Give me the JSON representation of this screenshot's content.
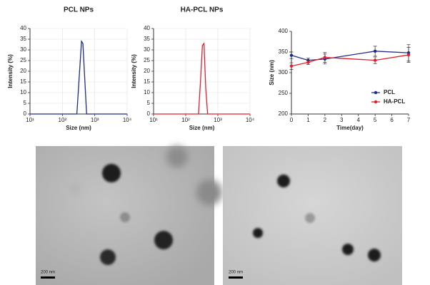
{
  "chart_data": [
    {
      "type": "line",
      "title": "PCL NPs",
      "x_label": "Size (nm)",
      "y_label": "Intensity (%)",
      "xscale": "log",
      "grid": true,
      "xlim": [
        10,
        10000
      ],
      "xticks": [
        {
          "value": 10,
          "label": "10¹"
        },
        {
          "value": 100,
          "label": "10²"
        },
        {
          "value": 1000,
          "label": "10³"
        },
        {
          "value": 10000,
          "label": "10⁴"
        }
      ],
      "ylim": [
        0,
        40
      ],
      "yticks": [
        0,
        5,
        10,
        15,
        20,
        25,
        30,
        35,
        40
      ],
      "x": [
        10,
        280,
        330,
        390,
        430,
        560,
        10000
      ],
      "series": [
        {
          "color": "#1f2a8c",
          "values": [
            0,
            0,
            17,
            34,
            33,
            0,
            0
          ]
        }
      ]
    },
    {
      "type": "line",
      "title": "HA-PCL NPs",
      "x_label": "Size (nm)",
      "y_label": "Intensity (%)",
      "xscale": "log",
      "grid": true,
      "xlim": [
        10,
        10000
      ],
      "xticks": [
        {
          "value": 10,
          "label": "10¹"
        },
        {
          "value": 100,
          "label": "10²"
        },
        {
          "value": 1000,
          "label": "10³"
        },
        {
          "value": 10000,
          "label": "10⁴"
        }
      ],
      "ylim": [
        0,
        40
      ],
      "yticks": [
        0,
        5,
        10,
        15,
        20,
        25,
        30,
        35,
        40
      ],
      "x": [
        10,
        250,
        290,
        330,
        370,
        420,
        480,
        10000
      ],
      "series": [
        {
          "color": "#e0202a",
          "values": [
            0,
            0,
            16,
            32,
            33,
            12,
            0,
            0
          ]
        }
      ]
    },
    {
      "type": "line",
      "x_label": "Time(day)",
      "y_label": "Size (nm)",
      "markers": true,
      "legend": "lower right",
      "xlim": [
        0,
        7
      ],
      "xticks": [
        0,
        1,
        2,
        3,
        4,
        5,
        6,
        7
      ],
      "ylim": [
        200,
        400
      ],
      "yticks": [
        200,
        250,
        300,
        350,
        400
      ],
      "x": [
        0,
        1,
        2,
        5,
        7
      ],
      "series": [
        {
          "name": "PCL",
          "color": "#1f2a8c",
          "values": [
            342,
            330,
            333,
            352,
            348
          ],
          "errors": [
            8,
            5,
            12,
            12,
            20
          ]
        },
        {
          "name": "HA-PCL",
          "color": "#e0202a",
          "values": [
            316,
            325,
            337,
            330,
            343
          ],
          "errors": [
            8,
            5,
            12,
            8,
            18
          ]
        }
      ]
    }
  ],
  "images": [
    {
      "scale_bar": "200 nm"
    },
    {
      "scale_bar": "200 nm"
    }
  ]
}
